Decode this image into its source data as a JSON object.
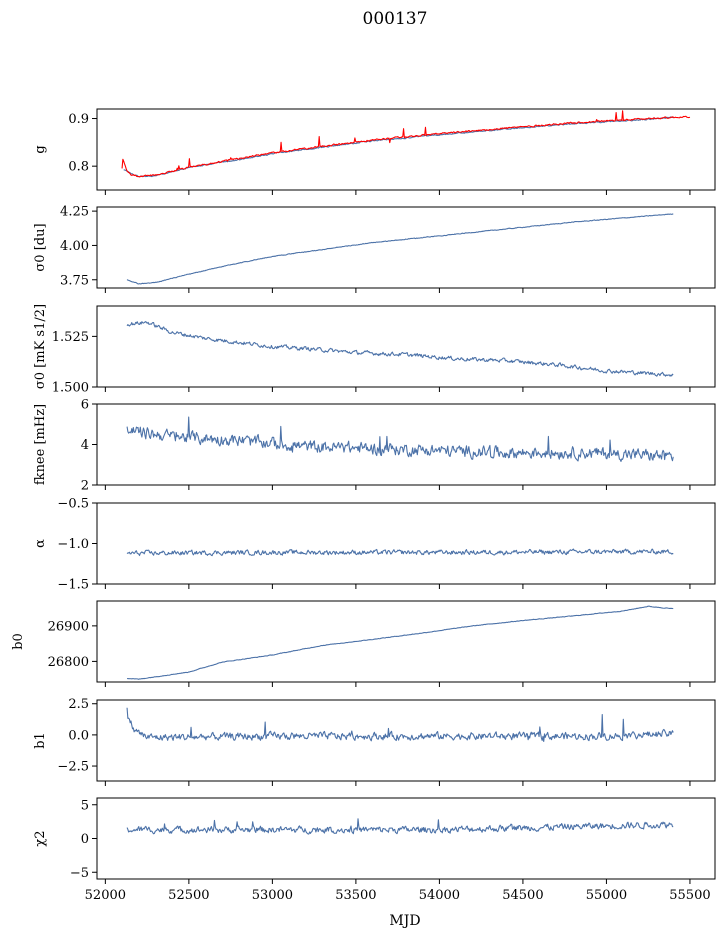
{
  "title": "000137",
  "colors": {
    "series": "#4c72a8",
    "overlay": "#ff0000",
    "axis": "#000000"
  },
  "chart_data": {
    "type": "line",
    "title": "000137",
    "xlabel": "MJD",
    "xlim": [
      51950,
      55650
    ],
    "xticks": [
      52000,
      52500,
      53000,
      53500,
      54000,
      54500,
      55000,
      55500
    ],
    "xtick_labels": [
      "52000",
      "52500",
      "53000",
      "53500",
      "54000",
      "54500",
      "55000",
      "55500"
    ],
    "grid": false,
    "panels": [
      {
        "key": "g",
        "ylabel": "g",
        "ylim": [
          0.75,
          0.92
        ],
        "yticks": [
          0.8,
          0.9
        ],
        "ytick_labels": [
          "0.8",
          "0.9"
        ],
        "series": [
          {
            "style": "series",
            "noise": 0.002,
            "spike": 0,
            "x": [
              52110,
              52200,
              52300,
              52500,
              52750,
              53000,
              53300,
              53600,
              54000,
              54400,
              54800,
              55200,
              55400
            ],
            "y": [
              0.792,
              0.778,
              0.78,
              0.797,
              0.811,
              0.826,
              0.84,
              0.853,
              0.866,
              0.878,
              0.889,
              0.897,
              0.903
            ]
          },
          {
            "style": "overlay",
            "noise": 0.0025,
            "spike": 0.02,
            "x": [
              52100,
              52150,
              52200,
              52300,
              52500,
              52750,
              53000,
              53300,
              53600,
              54000,
              54400,
              54800,
              55200,
              55500
            ],
            "y": [
              0.8,
              0.782,
              0.779,
              0.781,
              0.798,
              0.813,
              0.828,
              0.842,
              0.855,
              0.868,
              0.88,
              0.891,
              0.899,
              0.904
            ]
          }
        ]
      },
      {
        "key": "sigma0_du",
        "ylabel": "σ0 [du]",
        "ylim": [
          3.69,
          4.28
        ],
        "yticks": [
          3.75,
          4.0,
          4.25
        ],
        "ytick_labels": [
          "3.75",
          "4.00",
          "4.25"
        ],
        "series": [
          {
            "style": "series",
            "noise": 0.004,
            "spike": 0,
            "x": [
              52130,
              52200,
              52300,
              52500,
              52750,
              53000,
              53300,
              53600,
              54000,
              54400,
              54800,
              55100,
              55400
            ],
            "y": [
              3.75,
              3.72,
              3.73,
              3.79,
              3.86,
              3.92,
              3.97,
              4.02,
              4.07,
              4.12,
              4.17,
              4.2,
              4.23
            ]
          }
        ]
      },
      {
        "key": "sigma0_mks",
        "ylabel": "σ0 [mK s1/2]",
        "ylim": [
          1.5,
          1.54
        ],
        "yticks": [
          1.5,
          1.525
        ],
        "ytick_labels": [
          "1.500",
          "1.525"
        ],
        "series": [
          {
            "style": "series",
            "noise": 0.0015,
            "spike": 0,
            "x": [
              52130,
              52250,
              52400,
              52600,
              52800,
              53000,
              53200,
              53500,
              53800,
              54100,
              54400,
              54700,
              55000,
              55200,
              55400
            ],
            "y": [
              1.531,
              1.532,
              1.527,
              1.524,
              1.522,
              1.52,
              1.519,
              1.517,
              1.516,
              1.514,
              1.513,
              1.511,
              1.508,
              1.507,
              1.506
            ]
          }
        ]
      },
      {
        "key": "fknee",
        "ylabel": "fknee [mHz]",
        "ylim": [
          2,
          6
        ],
        "yticks": [
          2,
          4,
          6
        ],
        "ytick_labels": [
          "2",
          "4",
          "6"
        ],
        "series": [
          {
            "style": "series",
            "noise": 0.45,
            "spike": 0.9,
            "x": [
              52130,
              52400,
              52800,
              53200,
              53600,
              54000,
              54400,
              54800,
              55200,
              55400
            ],
            "y": [
              4.7,
              4.4,
              4.2,
              3.9,
              3.8,
              3.7,
              3.6,
              3.6,
              3.5,
              3.4
            ]
          }
        ]
      },
      {
        "key": "alpha",
        "ylabel": "α",
        "ylim": [
          -1.5,
          -0.5
        ],
        "yticks": [
          -1.5,
          -1.0,
          -0.5
        ],
        "ytick_labels": [
          "−1.5",
          "−1.0",
          "−0.5"
        ],
        "series": [
          {
            "style": "series",
            "noise": 0.045,
            "spike": 0,
            "x": [
              52130,
              53000,
              54000,
              55400
            ],
            "y": [
              -1.12,
              -1.11,
              -1.11,
              -1.1
            ]
          }
        ]
      },
      {
        "key": "b0",
        "ylabel": "b0",
        "ylim": [
          26742,
          26970
        ],
        "yticks": [
          26800,
          26900
        ],
        "ytick_labels": [
          "26800",
          "26900"
        ],
        "series": [
          {
            "style": "series",
            "noise": 1.2,
            "spike": 0,
            "x": [
              52130,
              52200,
              52500,
              52700,
              53000,
              53300,
              53600,
              53900,
              54200,
              54500,
              54800,
              55100,
              55250,
              55400
            ],
            "y": [
              26752,
              26750,
              26770,
              26798,
              26818,
              26845,
              26862,
              26880,
              26900,
              26915,
              26928,
              26942,
              26955,
              26948
            ]
          }
        ]
      },
      {
        "key": "b1",
        "ylabel": "b1",
        "ylim": [
          -3.7,
          2.8
        ],
        "yticks": [
          -2.5,
          0.0,
          2.5
        ],
        "ytick_labels": [
          "−2.5",
          "0.0",
          "2.5"
        ],
        "series": [
          {
            "style": "series",
            "noise": 0.45,
            "spike": 1.6,
            "x": [
              52130,
              52170,
              52250,
              53000,
              54000,
              55000,
              55400
            ],
            "y": [
              1.8,
              0.4,
              -0.2,
              -0.1,
              -0.1,
              -0.1,
              0.1
            ]
          }
        ]
      },
      {
        "key": "chi2",
        "ylabel": "χ2",
        "ylim": [
          -6,
          6
        ],
        "yticks": [
          -5,
          0,
          5
        ],
        "ytick_labels": [
          "−5",
          "0",
          "5"
        ],
        "series": [
          {
            "style": "series",
            "noise": 0.75,
            "spike": 1.4,
            "x": [
              52130,
              53000,
              54000,
              55400
            ],
            "y": [
              1.3,
              1.3,
              1.3,
              2.1
            ]
          }
        ]
      }
    ]
  }
}
